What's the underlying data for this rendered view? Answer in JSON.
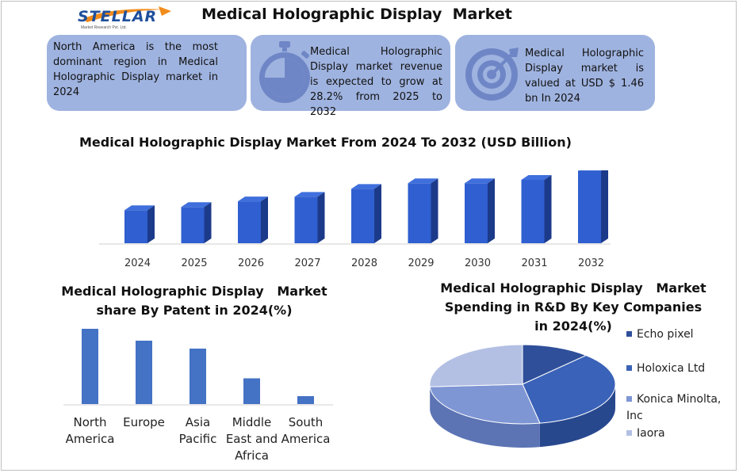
{
  "header": {
    "logo_text": "STELLAR",
    "logo_tagline": "Market Research Pvt. Ltd.",
    "title": "Medical Holographic Display  Market"
  },
  "cards": [
    {
      "icon": "globe",
      "text": "North America is the most dominant region in Medical Holographic Display market in 2024"
    },
    {
      "icon": "stopwatch-icon",
      "text": "Medical Holographic Display market revenue is expected to grow at 28.2% from 2025 to 2032"
    },
    {
      "icon": "target-icon",
      "text": "Medical Holographic Display market is valued at USD $ 1.46 bn In 2024"
    }
  ],
  "colors": {
    "card_bg": "#9fb3e0",
    "bar_front": "#2f5fd0",
    "bar_side": "#1c3a8a",
    "bar_top": "#3f6fdc",
    "flat_bar": "#4472c4",
    "pie": [
      "#2f4f9a",
      "#3a62b8",
      "#7f96d4",
      "#b3c0e4"
    ]
  },
  "chart_data": [
    {
      "type": "bar",
      "title": "Medical Holographic Display Market From 2024 To 2032 (USD Billion)",
      "categories": [
        "2024",
        "2025",
        "2026",
        "2027",
        "2028",
        "2029",
        "2030",
        "2031",
        "2032"
      ],
      "values": [
        1.46,
        1.6,
        1.85,
        2.05,
        2.4,
        2.65,
        2.65,
        2.8,
        3.2
      ],
      "ylim": [
        0,
        3.5
      ],
      "grid": false,
      "style": "3d"
    },
    {
      "type": "bar",
      "title": "Medical Holographic Display   Market\nshare By Patent in 2024(%)",
      "categories": [
        "North\nAmerica",
        "Europe",
        "Asia\nPacific",
        "Middle\nEast and\nAfrica",
        "South\nAmerica"
      ],
      "values": [
        38,
        32,
        28,
        13,
        4
      ],
      "ylim": [
        0,
        40
      ],
      "grid": false
    },
    {
      "type": "pie",
      "title": "Medical Holographic Display   Market\nSpending in R&D By Key Companies\nin 2024(%)",
      "labels": [
        "Echo pixel",
        "Holoxica Ltd",
        "Konica Minolta,\nInc",
        "Iaora"
      ],
      "values": [
        12,
        35,
        27,
        26
      ],
      "legend": "right",
      "style": "3d"
    }
  ]
}
